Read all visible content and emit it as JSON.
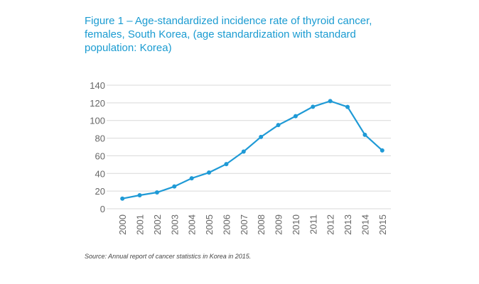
{
  "chart_data": {
    "type": "line",
    "title": "Figure 1 – Age-standardized incidence rate of thyroid cancer, females, South Korea, (age standardization with standard population: Korea)",
    "xlabel": "",
    "ylabel": "",
    "categories": [
      "2000",
      "2001",
      "2002",
      "2003",
      "2004",
      "2005",
      "2006",
      "2007",
      "2008",
      "2009",
      "2010",
      "2011",
      "2012",
      "2013",
      "2014",
      "2015"
    ],
    "series": [
      {
        "name": "Incidence rate",
        "values": [
          11.5,
          15.3,
          18.5,
          25.2,
          34.5,
          41,
          50.6,
          64.8,
          81.4,
          94.8,
          104.9,
          115.6,
          122,
          115.4,
          83.8,
          66.1
        ],
        "color": "#1f9ad6"
      }
    ],
    "ylim": [
      0,
      140
    ],
    "yticks": [
      0,
      20,
      40,
      60,
      80,
      100,
      120,
      140
    ],
    "grid": true,
    "legend": "none",
    "source": "Source: Annual report of cancer statistics in Korea in 2015."
  }
}
